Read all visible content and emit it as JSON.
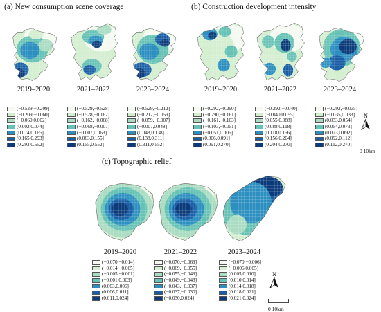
{
  "panel_a": {
    "title": "(a)  New consumption scene coverage",
    "years": [
      "2019–2020",
      "2021–2022",
      "2023–2024"
    ],
    "legends": [
      [
        "(−0.529,−0.209]",
        "(−0.209,−0.060]",
        "(−0.060,0.002]",
        "(0.002,0.074]",
        "(0.074,0.165]",
        "(0.165,0.293]",
        "(0.293,0.552]"
      ],
      [
        "(−0.529,−0.528]",
        "(−0.528,−0.162]",
        "(−0.162,−0.068]",
        "(−0.068,−0.007]",
        "(−0.007,0.063]",
        "(0.063,0.155]",
        "(0.155,0.552]"
      ],
      [
        "(−0.529,−0.212]",
        "(−0.212,−0.059]",
        "(−0.059,−0.007]",
        "(−0.007,0.048]",
        "(0.048,0.138]",
        "(0.138,0.311]",
        "(0.311,0.552]"
      ]
    ]
  },
  "panel_b": {
    "title": "(b)  Construction development intensity",
    "years": [
      "2019–2020",
      "2021–2022",
      "2023–2024"
    ],
    "legends": [
      [
        "(−0.292,−0.290]",
        "(−0.290,−0.161]",
        "(−0.161,−0.103]",
        "(−0.103,−0.051]",
        "(−0.051,0.006]",
        "(0.006,0.091]",
        "(0.091,0.270]"
      ],
      [
        "(−0.292,−0.040]",
        "(−0.040,0.055]",
        "(0.055,0.088]",
        "(0.088,0.118]",
        "(0.118,0.156]",
        "(0.156,0.204]",
        "(0.204,0.270]"
      ],
      [
        "(−0.292,−0.035]",
        "(−0.035,0.033]",
        "(0.033,0.054]",
        "(0.054,0.073]",
        "(0.073,0.092]",
        "(0.092,0.112]",
        "(0.112,0.270]"
      ]
    ]
  },
  "panel_c": {
    "title": "(c)  Topographic relief",
    "years": [
      "2019–2020",
      "2021–2022",
      "2023–2024"
    ],
    "legends": [
      [
        "(−0.070,−0.014]",
        "(−0.014,−0.005]",
        "(−0.005,−0.001]",
        "(−0.001,0.003]",
        "(0.003,0.006]",
        "(0.006,0.011]",
        "(0.011,0.024]"
      ],
      [
        "(−0.070,−0.069]",
        "(−0.069,−0.055]",
        "(−0.055,−0.049]",
        "(−0.049,−0.043]",
        "(−0.043,−0.037]",
        "(−0.037,−0.030]",
        "(−0.030,0.024]"
      ],
      [
        "(−0.070,−0.006]",
        "(−0.006,0.005]",
        "(0.005,0.010]",
        "(0.010,0.014]",
        "(0.014,0.018]",
        "(0.018,0.021]",
        "(0.021,0.024]"
      ]
    ]
  },
  "north_label": "N",
  "scale_label": "0  10km",
  "colors": [
    "#f4faf1",
    "#d4eed0",
    "#a9dcc2",
    "#66c2b5",
    "#2c8fc0",
    "#1a5fa6",
    "#0b3b7a"
  ]
}
